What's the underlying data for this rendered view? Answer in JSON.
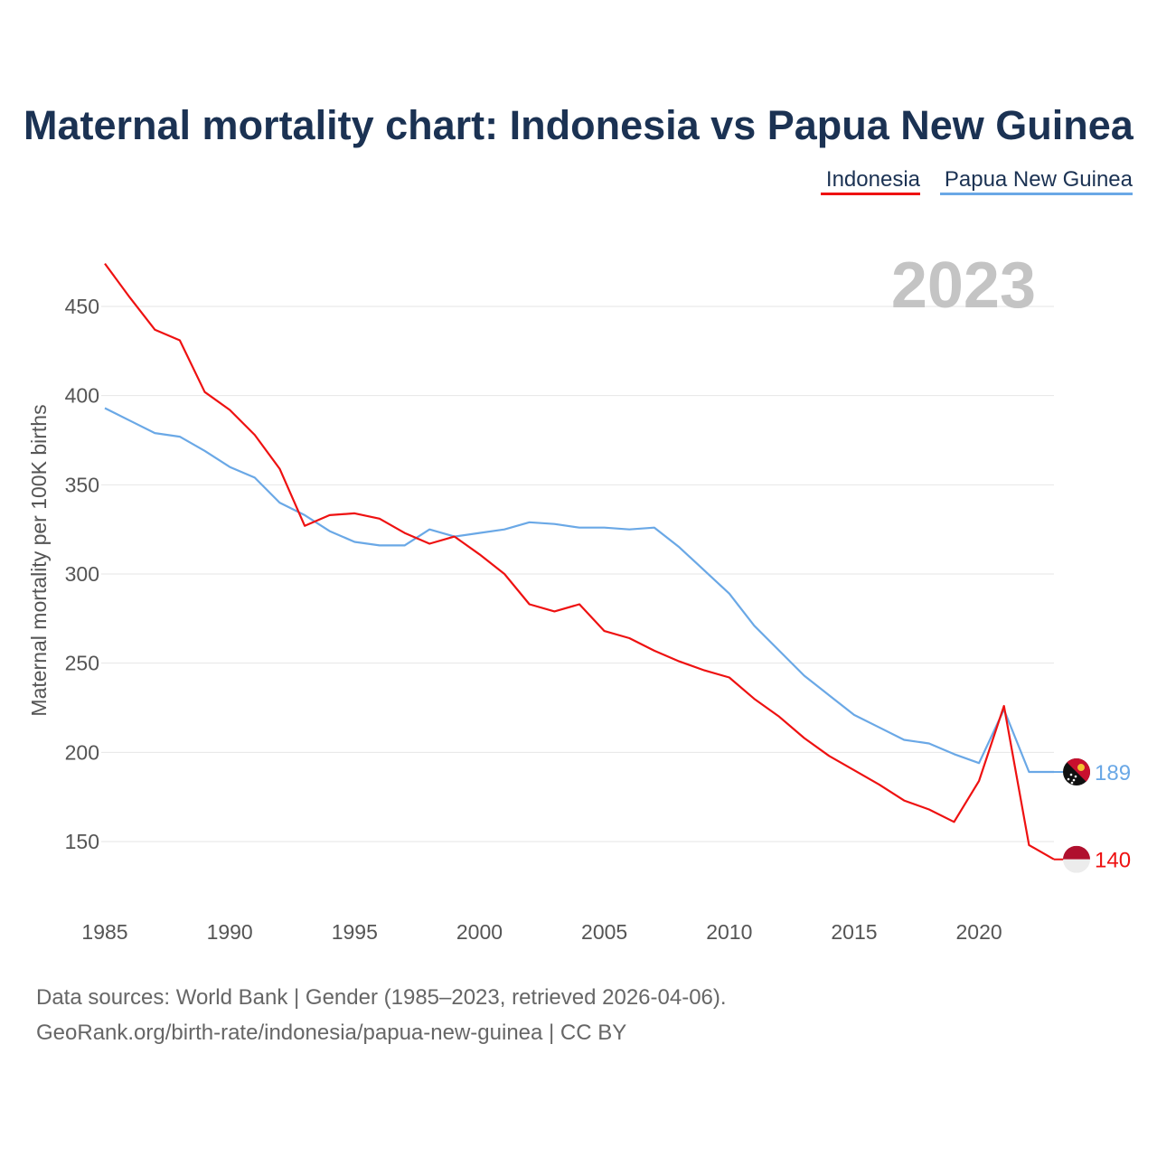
{
  "title": "Maternal mortality chart: Indonesia vs Papua New Guinea",
  "year_label": "2023",
  "source_line1": "Data sources: World Bank | Gender (1985–2023, retrieved 2026-04-06).",
  "source_line2": "GeoRank.org/birth-rate/indonesia/papua-new-guinea | CC BY",
  "chart_data": {
    "type": "line",
    "title": "Maternal mortality chart: Indonesia vs Papua New Guinea",
    "xlabel": "",
    "ylabel": "Maternal mortality per 100K births",
    "xlim": [
      1985,
      2023
    ],
    "ylim": [
      120,
      480
    ],
    "x_ticks": [
      1985,
      1990,
      1995,
      2000,
      2005,
      2010,
      2015,
      2020
    ],
    "y_ticks": [
      150,
      200,
      250,
      300,
      350,
      400,
      450
    ],
    "legend_position": "top-right",
    "x": [
      1985,
      1986,
      1987,
      1988,
      1989,
      1990,
      1991,
      1992,
      1993,
      1994,
      1995,
      1996,
      1997,
      1998,
      1999,
      2000,
      2001,
      2002,
      2003,
      2004,
      2005,
      2006,
      2007,
      2008,
      2009,
      2010,
      2011,
      2012,
      2013,
      2014,
      2015,
      2016,
      2017,
      2018,
      2019,
      2020,
      2021,
      2022,
      2023
    ],
    "series": [
      {
        "name": "Indonesia",
        "color": "#ee1111",
        "end_value": "140",
        "flag": "indonesia-flag",
        "values": [
          474,
          455,
          437,
          431,
          402,
          392,
          378,
          359,
          327,
          333,
          334,
          331,
          323,
          317,
          321,
          311,
          300,
          283,
          279,
          283,
          268,
          264,
          257,
          251,
          246,
          242,
          230,
          220,
          208,
          198,
          190,
          182,
          173,
          168,
          161,
          184,
          226,
          148,
          140
        ]
      },
      {
        "name": "Papua New Guinea",
        "color": "#6aa8e6",
        "end_value": "189",
        "flag": "papua-new-guinea-flag",
        "values": [
          393,
          386,
          379,
          377,
          369,
          360,
          354,
          340,
          333,
          324,
          318,
          316,
          316,
          325,
          321,
          323,
          325,
          329,
          328,
          326,
          326,
          325,
          326,
          315,
          302,
          289,
          271,
          257,
          243,
          232,
          221,
          214,
          207,
          205,
          199,
          194,
          224,
          189,
          189
        ]
      }
    ]
  }
}
